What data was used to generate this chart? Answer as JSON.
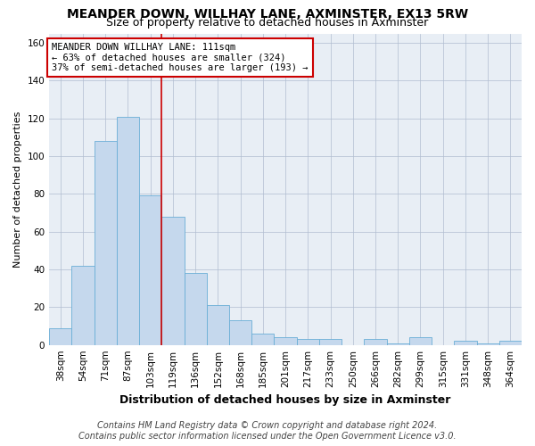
{
  "title": "MEANDER DOWN, WILLHAY LANE, AXMINSTER, EX13 5RW",
  "subtitle": "Size of property relative to detached houses in Axminster",
  "xlabel": "Distribution of detached houses by size in Axminster",
  "ylabel": "Number of detached properties",
  "bar_labels": [
    "38sqm",
    "54sqm",
    "71sqm",
    "87sqm",
    "103sqm",
    "119sqm",
    "136sqm",
    "152sqm",
    "168sqm",
    "185sqm",
    "201sqm",
    "217sqm",
    "233sqm",
    "250sqm",
    "266sqm",
    "282sqm",
    "299sqm",
    "315sqm",
    "331sqm",
    "348sqm",
    "364sqm"
  ],
  "bar_values": [
    9,
    42,
    108,
    121,
    79,
    68,
    38,
    21,
    13,
    6,
    4,
    3,
    3,
    0,
    3,
    1,
    4,
    0,
    2,
    1,
    2
  ],
  "bar_color": "#c5d8ed",
  "bar_edge_color": "#6aaed6",
  "vline_color": "#cc0000",
  "vline_x": 4.5,
  "ylim": [
    0,
    165
  ],
  "yticks": [
    0,
    20,
    40,
    60,
    80,
    100,
    120,
    140,
    160
  ],
  "annotation_text": "MEANDER DOWN WILLHAY LANE: 111sqm\n← 63% of detached houses are smaller (324)\n37% of semi-detached houses are larger (193) →",
  "annotation_box_color": "#ffffff",
  "annotation_border_color": "#cc0000",
  "footer_line1": "Contains HM Land Registry data © Crown copyright and database right 2024.",
  "footer_line2": "Contains public sector information licensed under the Open Government Licence v3.0.",
  "bg_color": "#e8eef5",
  "title_fontsize": 10,
  "subtitle_fontsize": 9,
  "xlabel_fontsize": 9,
  "ylabel_fontsize": 8,
  "tick_fontsize": 7.5,
  "annot_fontsize": 7.5,
  "footer_fontsize": 7
}
